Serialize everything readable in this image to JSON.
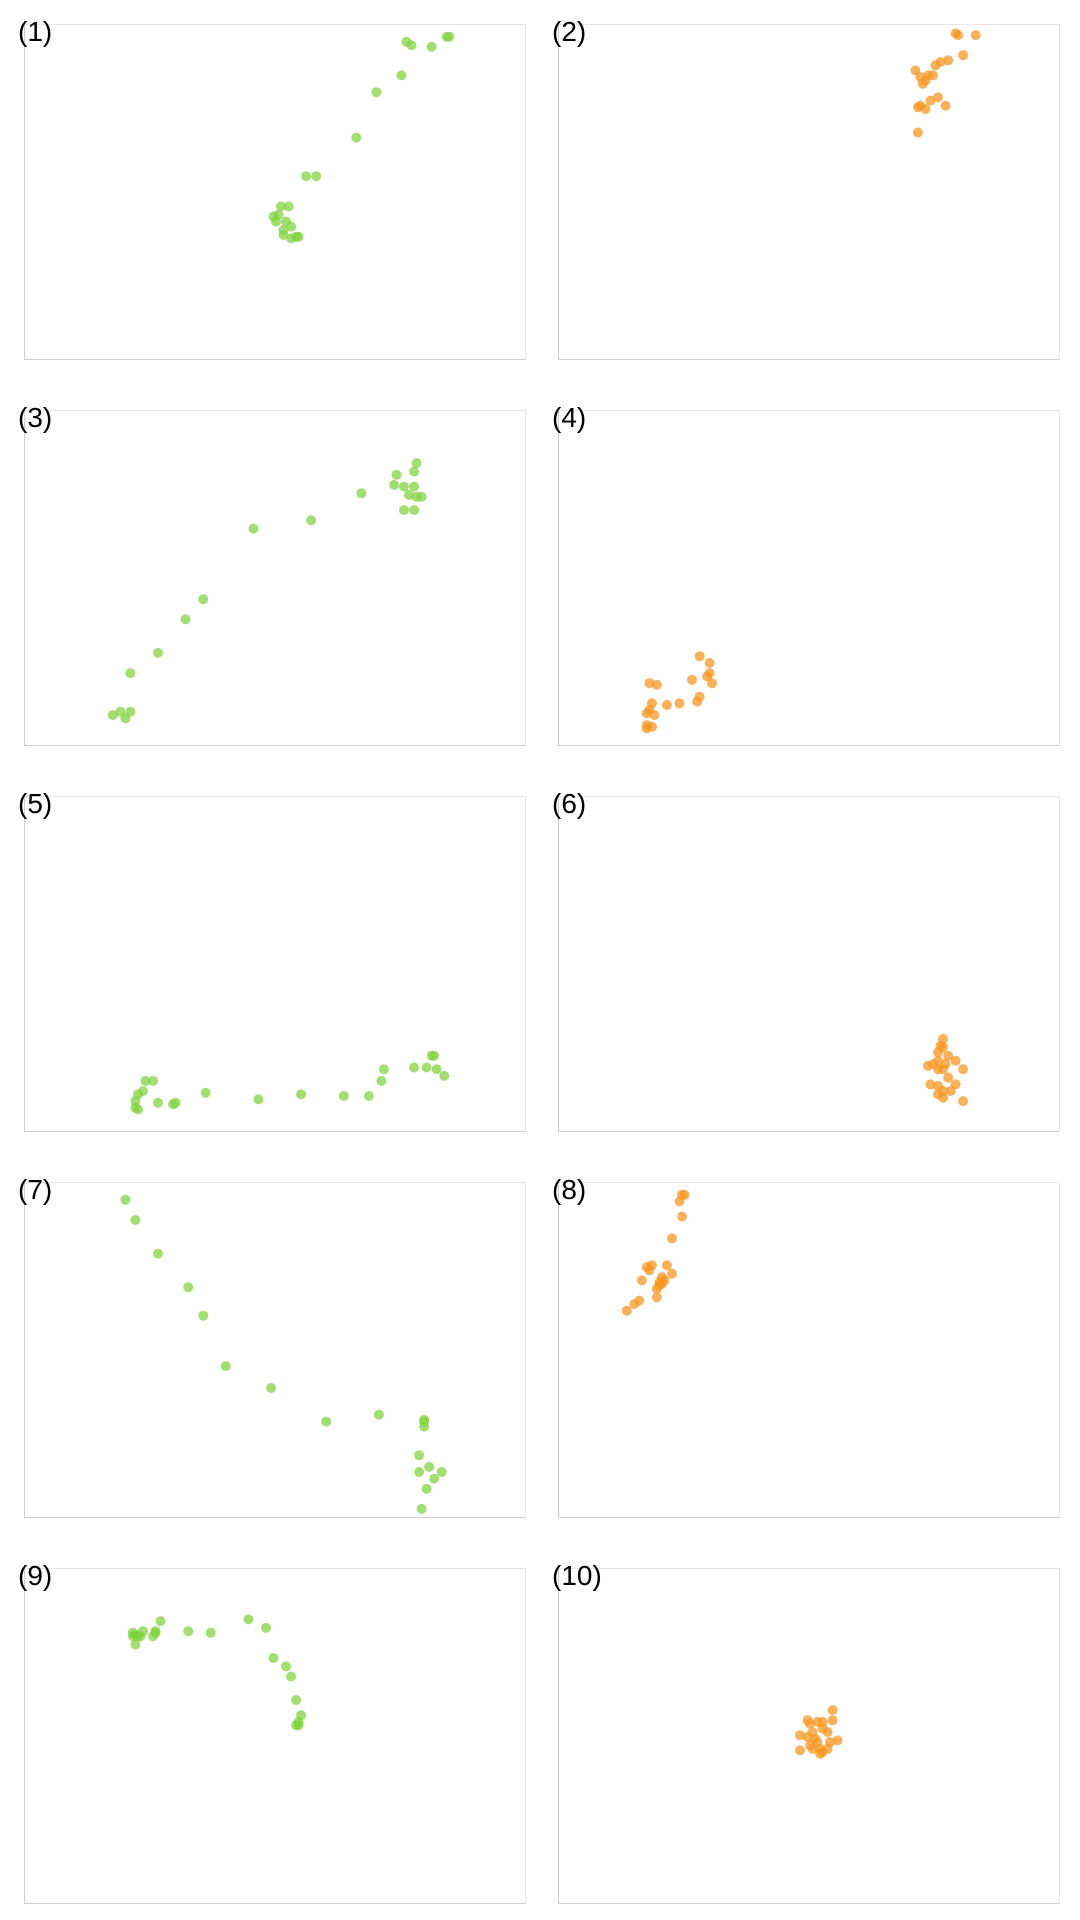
{
  "figure": {
    "colors": {
      "green": "#7fd13b",
      "orange": "#f7941d"
    }
  },
  "chart_data": [
    {
      "type": "scatter",
      "label": "(1)",
      "color": "green",
      "xlim": [
        0,
        100
      ],
      "ylim": [
        0,
        100
      ],
      "grid": false,
      "points": [
        [
          50.5,
          43.5
        ],
        [
          51,
          46
        ],
        [
          50,
          41.5
        ],
        [
          52,
          41.5
        ],
        [
          51.5,
          39
        ],
        [
          53,
          40
        ],
        [
          51.5,
          37.5
        ],
        [
          54,
          37
        ],
        [
          53,
          36.5
        ],
        [
          52.5,
          46
        ],
        [
          54.5,
          37
        ],
        [
          49.5,
          43
        ],
        [
          56,
          55
        ],
        [
          58,
          55
        ],
        [
          66,
          66.5
        ],
        [
          70,
          80
        ],
        [
          75,
          85
        ],
        [
          76,
          95
        ],
        [
          77,
          94
        ],
        [
          81,
          93.5
        ],
        [
          84,
          96.5
        ],
        [
          84.5,
          96.5
        ]
      ]
    },
    {
      "type": "scatter",
      "label": "(2)",
      "color": "orange",
      "xlim": [
        0,
        100
      ],
      "ylim": [
        0,
        100
      ],
      "grid": false,
      "points": [
        [
          79,
          97.5
        ],
        [
          79.5,
          97
        ],
        [
          83,
          97
        ],
        [
          80.5,
          91
        ],
        [
          77.5,
          89.5
        ],
        [
          76,
          89
        ],
        [
          75,
          88
        ],
        [
          74.5,
          85
        ],
        [
          71,
          86.5
        ],
        [
          72,
          84.5
        ],
        [
          73,
          83.5
        ],
        [
          72.5,
          82.5
        ],
        [
          73.5,
          85
        ],
        [
          72,
          76
        ],
        [
          74,
          77.5
        ],
        [
          75.5,
          78.5
        ],
        [
          77,
          76
        ],
        [
          71.5,
          75.5
        ],
        [
          73,
          75
        ],
        [
          71.5,
          68
        ]
      ]
    },
    {
      "type": "scatter",
      "label": "(3)",
      "color": "green",
      "xlim": [
        0,
        100
      ],
      "ylim": [
        0,
        100
      ],
      "grid": false,
      "points": [
        [
          78,
          84.5
        ],
        [
          77.5,
          82
        ],
        [
          74,
          81
        ],
        [
          73.5,
          78
        ],
        [
          75.5,
          77.5
        ],
        [
          77.5,
          77.5
        ],
        [
          76.5,
          75
        ],
        [
          78,
          74.5
        ],
        [
          79,
          74.5
        ],
        [
          77.5,
          70.5
        ],
        [
          75.5,
          70.5
        ],
        [
          67,
          75.5
        ],
        [
          57,
          67.5
        ],
        [
          45.5,
          65
        ],
        [
          35.5,
          44
        ],
        [
          32,
          38
        ],
        [
          26.5,
          28
        ],
        [
          21,
          22
        ],
        [
          19,
          10.5
        ],
        [
          17.5,
          9.5
        ],
        [
          21,
          10.5
        ],
        [
          20,
          8.5
        ]
      ]
    },
    {
      "type": "scatter",
      "label": "(4)",
      "color": "orange",
      "xlim": [
        0,
        100
      ],
      "ylim": [
        0,
        100
      ],
      "grid": false,
      "points": [
        [
          28,
          27
        ],
        [
          30,
          25
        ],
        [
          29.5,
          21
        ],
        [
          26.5,
          20
        ],
        [
          30.5,
          19
        ],
        [
          30,
          22
        ],
        [
          28,
          15
        ],
        [
          27.5,
          13.5
        ],
        [
          24,
          13
        ],
        [
          21.5,
          12.5
        ],
        [
          18.5,
          13
        ],
        [
          17.5,
          10
        ],
        [
          18,
          11
        ],
        [
          19,
          9.5
        ],
        [
          17.5,
          5.5
        ],
        [
          18.5,
          6
        ],
        [
          17.5,
          6.5
        ],
        [
          18,
          19
        ],
        [
          19.5,
          18.5
        ]
      ]
    },
    {
      "type": "scatter",
      "label": "(5)",
      "color": "green",
      "xlim": [
        0,
        100
      ],
      "ylim": [
        0,
        100
      ],
      "grid": false,
      "points": [
        [
          81.5,
          23
        ],
        [
          81,
          23
        ],
        [
          82,
          19
        ],
        [
          80,
          19.5
        ],
        [
          83.5,
          17
        ],
        [
          77.5,
          19.5
        ],
        [
          71.5,
          19
        ],
        [
          71,
          15.5
        ],
        [
          68.5,
          11
        ],
        [
          63.5,
          11
        ],
        [
          55,
          11.5
        ],
        [
          46.5,
          10
        ],
        [
          36,
          12
        ],
        [
          30,
          9
        ],
        [
          29.5,
          8.5
        ],
        [
          26.5,
          9
        ],
        [
          25.5,
          15.5
        ],
        [
          24,
          15.5
        ],
        [
          23.5,
          12.5
        ],
        [
          22.5,
          11.5
        ],
        [
          22,
          9.5
        ],
        [
          22.5,
          7
        ],
        [
          22,
          7.5
        ]
      ]
    },
    {
      "type": "scatter",
      "label": "(6)",
      "color": "orange",
      "xlim": [
        0,
        100
      ],
      "ylim": [
        0,
        100
      ],
      "grid": false,
      "points": [
        [
          76.5,
          28
        ],
        [
          76,
          26
        ],
        [
          76.5,
          25.5
        ],
        [
          75.5,
          24
        ],
        [
          77.5,
          23
        ],
        [
          75.5,
          21.5
        ],
        [
          77,
          20.5
        ],
        [
          74.5,
          20.5
        ],
        [
          79,
          21.5
        ],
        [
          80.5,
          19
        ],
        [
          75.5,
          19
        ],
        [
          76.5,
          19
        ],
        [
          77.5,
          16.5
        ],
        [
          79,
          14.5
        ],
        [
          74,
          14.5
        ],
        [
          73.5,
          20
        ],
        [
          75.5,
          14
        ],
        [
          76.5,
          12.5
        ],
        [
          78,
          12.5
        ],
        [
          75.5,
          11.5
        ],
        [
          80.5,
          9.5
        ],
        [
          76.5,
          10.5
        ]
      ]
    },
    {
      "type": "scatter",
      "label": "(7)",
      "color": "green",
      "xlim": [
        0,
        100
      ],
      "ylim": [
        0,
        100
      ],
      "grid": false,
      "points": [
        [
          20,
          95
        ],
        [
          22,
          89
        ],
        [
          26.5,
          79
        ],
        [
          32.5,
          69
        ],
        [
          35.5,
          60.5
        ],
        [
          40,
          45.5
        ],
        [
          49,
          39
        ],
        [
          60,
          29
        ],
        [
          70.5,
          31
        ],
        [
          79.5,
          29.5
        ],
        [
          79.5,
          29
        ],
        [
          79.5,
          27.5
        ],
        [
          78.5,
          19
        ],
        [
          78.5,
          14
        ],
        [
          80.5,
          15.5
        ],
        [
          83,
          14
        ],
        [
          81.5,
          12
        ],
        [
          80,
          9
        ],
        [
          79,
          3
        ]
      ]
    },
    {
      "type": "scatter",
      "label": "(8)",
      "color": "orange",
      "xlim": [
        0,
        100
      ],
      "ylim": [
        0,
        100
      ],
      "grid": false,
      "points": [
        [
          25,
          96.5
        ],
        [
          24.5,
          96.5
        ],
        [
          24,
          94.5
        ],
        [
          24.5,
          90
        ],
        [
          22.5,
          83.5
        ],
        [
          21.5,
          75.5
        ],
        [
          22.5,
          73
        ],
        [
          18.5,
          75.5
        ],
        [
          20.5,
          72
        ],
        [
          21,
          71
        ],
        [
          17.5,
          75
        ],
        [
          20.5,
          70
        ],
        [
          18,
          74
        ],
        [
          20,
          70.5
        ],
        [
          19.5,
          68.5
        ],
        [
          20,
          69.5
        ],
        [
          16.5,
          71
        ],
        [
          19.5,
          66
        ],
        [
          16,
          65
        ],
        [
          15,
          64
        ],
        [
          13.5,
          62
        ]
      ]
    },
    {
      "type": "scatter",
      "label": "(9)",
      "color": "green",
      "xlim": [
        0,
        100
      ],
      "ylim": [
        0,
        100
      ],
      "grid": false,
      "points": [
        [
          44.5,
          85
        ],
        [
          48,
          82.5
        ],
        [
          49.5,
          73.5
        ],
        [
          52,
          71
        ],
        [
          53,
          68
        ],
        [
          54,
          61
        ],
        [
          55,
          56.5
        ],
        [
          54.5,
          54.5
        ],
        [
          54,
          53.5
        ],
        [
          54.5,
          53.5
        ],
        [
          37,
          81
        ],
        [
          32.5,
          81.5
        ],
        [
          27,
          84.5
        ],
        [
          26,
          81.5
        ],
        [
          25.5,
          80
        ],
        [
          23.5,
          81.5
        ],
        [
          22.5,
          80
        ],
        [
          22,
          80.5
        ],
        [
          21.5,
          80
        ],
        [
          21.5,
          81
        ],
        [
          23,
          80
        ],
        [
          22,
          77.5
        ],
        [
          26,
          81
        ]
      ]
    },
    {
      "type": "scatter",
      "label": "(10)",
      "color": "orange",
      "xlim": [
        0,
        100
      ],
      "ylim": [
        0,
        100
      ],
      "grid": false,
      "points": [
        [
          54.5,
          58
        ],
        [
          54.5,
          55
        ],
        [
          52.5,
          54.5
        ],
        [
          51.5,
          54.5
        ],
        [
          49.5,
          55
        ],
        [
          50,
          54
        ],
        [
          52.5,
          52.5
        ],
        [
          50.5,
          51.5
        ],
        [
          53.5,
          51.5
        ],
        [
          48,
          50.5
        ],
        [
          49.5,
          50
        ],
        [
          51,
          49.5
        ],
        [
          51.5,
          48.5
        ],
        [
          55.5,
          49
        ],
        [
          54,
          48.5
        ],
        [
          50,
          47.5
        ],
        [
          53.5,
          46.5
        ],
        [
          52,
          46.5
        ],
        [
          50.5,
          46.5
        ],
        [
          48,
          46
        ],
        [
          52.5,
          45.5
        ],
        [
          52,
          45
        ]
      ]
    }
  ]
}
